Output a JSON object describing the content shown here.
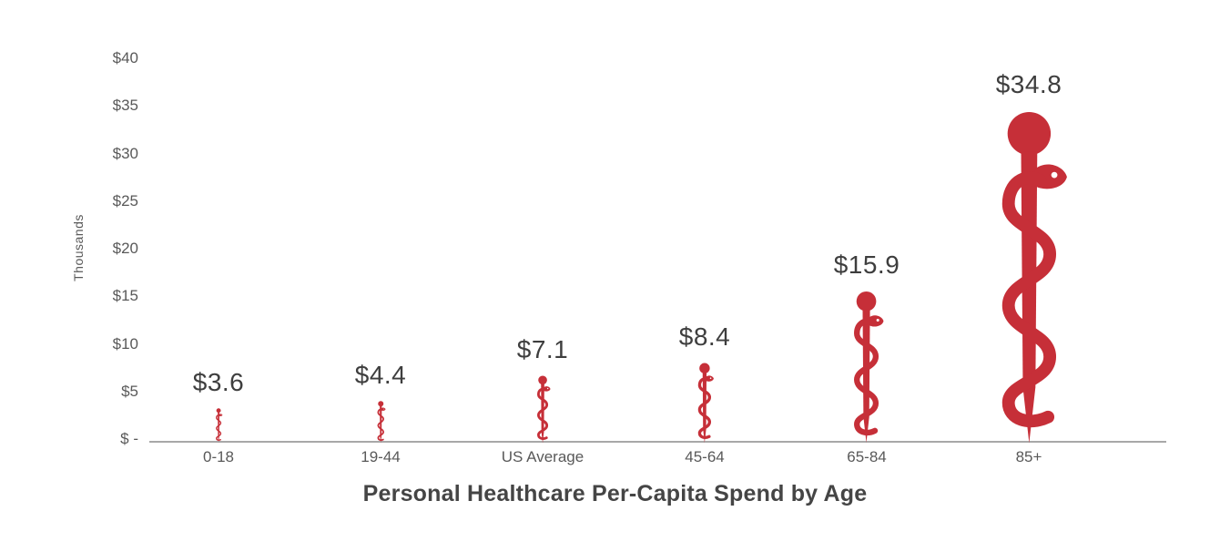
{
  "chart_data": {
    "type": "bar",
    "variant": "pictogram-bars (Rod of Asclepius icons scaled to value)",
    "title": "Personal Healthcare Per-Capita Spend by Age",
    "xlabel": "",
    "ylabel": "Thousands",
    "categories": [
      "0-18",
      "19-44",
      "US Average",
      "45-64",
      "65-84",
      "85+"
    ],
    "values": [
      3.6,
      4.4,
      7.1,
      8.4,
      15.9,
      34.8
    ],
    "value_labels": [
      "$3.6",
      "$4.4",
      "$7.1",
      "$8.4",
      "$15.9",
      "$34.8"
    ],
    "y_ticks": [
      {
        "value": 40,
        "label": "$40"
      },
      {
        "value": 35,
        "label": "$35"
      },
      {
        "value": 30,
        "label": "$30"
      },
      {
        "value": 25,
        "label": "$25"
      },
      {
        "value": 20,
        "label": "$20"
      },
      {
        "value": 15,
        "label": "$15"
      },
      {
        "value": 10,
        "label": "$10"
      },
      {
        "value": 5,
        "label": "$5"
      },
      {
        "value": 0,
        "label": "$ -"
      }
    ],
    "ylim": [
      0,
      40
    ],
    "grid": false,
    "legend": false,
    "icon": "rod-of-asclepius",
    "colors": {
      "icon": "#c62f38",
      "axis_line": "#a8a8a8",
      "tick_text": "#595959",
      "value_label_text": "#3e3e3e",
      "title_text": "#454545",
      "background": "#ffffff"
    }
  }
}
